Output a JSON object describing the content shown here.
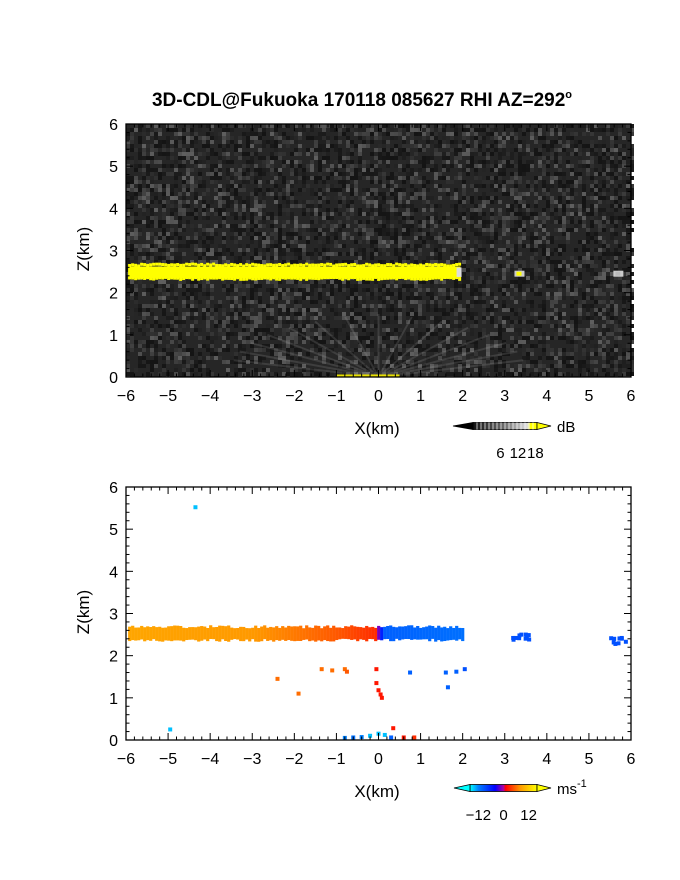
{
  "title": "3D-CDL@Fukuoka 170118 085627 RHI AZ=292",
  "title_degree": "o",
  "chart_data": [
    {
      "type": "heatmap",
      "field": "reflectivity",
      "xlabel": "X(km)",
      "ylabel": "Z(km)",
      "xlim": [
        -6,
        6
      ],
      "ylim": [
        0,
        6
      ],
      "xticks": [
        "-6",
        "-5",
        "-4",
        "-3",
        "-2",
        "-1",
        "0",
        "1",
        "2",
        "3",
        "4",
        "5",
        "6"
      ],
      "yticks": [
        "0",
        "1",
        "2",
        "3",
        "4",
        "5",
        "6"
      ],
      "colorbar": {
        "unit": "dB",
        "ticks": [
          "6",
          "12",
          "18"
        ],
        "values": [
          6,
          12,
          18
        ],
        "range": [
          0,
          22
        ]
      },
      "background": "noise",
      "features": [
        {
          "kind": "layer",
          "x": [
            -5.95,
            1.95
          ],
          "z": [
            2.35,
            2.62
          ],
          "value": 20,
          "color": "#ffff00"
        },
        {
          "kind": "echo",
          "x": 3.35,
          "z": 2.45,
          "value": 20,
          "color": "#ffff00"
        },
        {
          "kind": "echo",
          "x": 5.7,
          "z": 2.45,
          "value": 12,
          "color": "#bbbbbb"
        },
        {
          "kind": "surface",
          "x": [
            -1.0,
            0.5
          ],
          "z": [
            0.0,
            0.06
          ],
          "value": 18,
          "color": "#e8e000"
        }
      ]
    },
    {
      "type": "scatter",
      "field": "radial_velocity",
      "xlabel": "X(km)",
      "ylabel": "Z(km)",
      "xlim": [
        -6,
        6
      ],
      "ylim": [
        0,
        6
      ],
      "xticks": [
        "-6",
        "-5",
        "-4",
        "-3",
        "-2",
        "-1",
        "0",
        "1",
        "2",
        "3",
        "4",
        "5",
        "6"
      ],
      "yticks": [
        "0",
        "1",
        "2",
        "3",
        "4",
        "5",
        "6"
      ],
      "colorbar": {
        "unit": "ms",
        "unit_exponent": "-1",
        "ticks": [
          "-12",
          "0",
          "12"
        ],
        "values": [
          -12,
          0,
          12
        ],
        "range": [
          -16,
          16
        ]
      },
      "layer": {
        "x": [
          -5.95,
          2.0
        ],
        "z": [
          2.4,
          2.65
        ],
        "velocity_profile": [
          [
            -5.95,
            9
          ],
          [
            -3,
            8
          ],
          [
            -1,
            5
          ],
          [
            -0.1,
            3
          ],
          [
            0.1,
            -10
          ],
          [
            2.0,
            -11
          ]
        ]
      },
      "points": [
        {
          "x": -4.35,
          "z": 5.52,
          "v": -14
        },
        {
          "x": -4.95,
          "z": 0.25,
          "v": -14
        },
        {
          "x": -2.4,
          "z": 1.45,
          "v": 6
        },
        {
          "x": -1.9,
          "z": 1.1,
          "v": 6
        },
        {
          "x": -1.35,
          "z": 1.68,
          "v": 6
        },
        {
          "x": -1.1,
          "z": 1.65,
          "v": 6
        },
        {
          "x": -0.8,
          "z": 1.68,
          "v": 6
        },
        {
          "x": -0.75,
          "z": 1.62,
          "v": 5
        },
        {
          "x": -0.05,
          "z": 1.68,
          "v": 2
        },
        {
          "x": -0.05,
          "z": 1.35,
          "v": 2
        },
        {
          "x": 0.0,
          "z": 1.18,
          "v": 2
        },
        {
          "x": 0.05,
          "z": 1.08,
          "v": 2
        },
        {
          "x": 0.08,
          "z": 1.0,
          "v": 2
        },
        {
          "x": 0.75,
          "z": 1.6,
          "v": -10
        },
        {
          "x": 1.6,
          "z": 1.6,
          "v": -10
        },
        {
          "x": 1.65,
          "z": 1.25,
          "v": -10
        },
        {
          "x": 1.85,
          "z": 1.62,
          "v": -10
        },
        {
          "x": 2.05,
          "z": 1.68,
          "v": -9
        },
        {
          "x": 0.35,
          "z": 0.28,
          "v": 2
        },
        {
          "x": 0.6,
          "z": 0.06,
          "v": 2
        },
        {
          "x": 0.85,
          "z": 0.06,
          "v": 3
        },
        {
          "x": -0.8,
          "z": 0.05,
          "v": -12
        },
        {
          "x": -0.6,
          "z": 0.06,
          "v": -11
        },
        {
          "x": -0.4,
          "z": 0.07,
          "v": -12
        },
        {
          "x": -0.2,
          "z": 0.1,
          "v": -14
        },
        {
          "x": 0.0,
          "z": 0.15,
          "v": -14
        },
        {
          "x": 0.15,
          "z": 0.12,
          "v": -14
        },
        {
          "x": 0.3,
          "z": 0.06,
          "v": -10
        },
        {
          "x": 3.2,
          "z": 2.42,
          "v": -9
        },
        {
          "x": 3.35,
          "z": 2.48,
          "v": -9
        },
        {
          "x": 3.5,
          "z": 2.5,
          "v": -9
        },
        {
          "x": 5.6,
          "z": 2.4,
          "v": -9
        },
        {
          "x": 5.78,
          "z": 2.42,
          "v": -9
        }
      ]
    }
  ]
}
